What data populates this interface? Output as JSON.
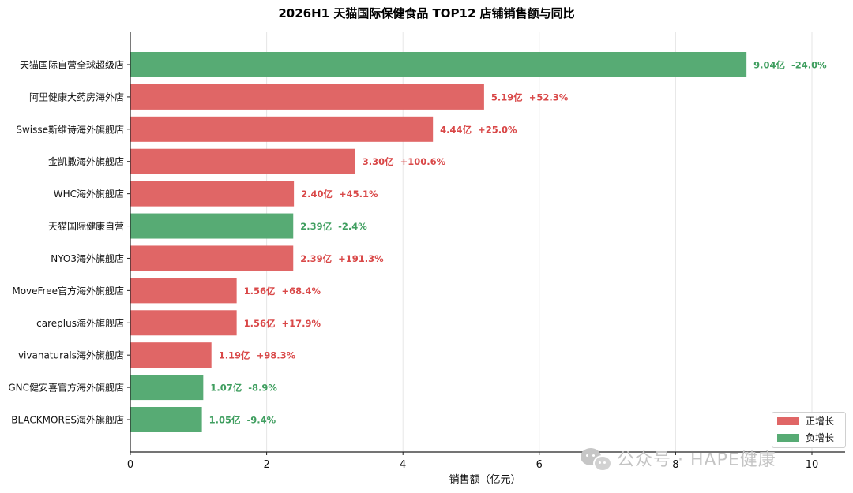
{
  "chart_data": {
    "type": "bar",
    "orientation": "horizontal",
    "title": "2026H1 天猫国际保健食品 TOP12 店铺销售额与同比",
    "xlabel": "销售额（亿元）",
    "ylabel": "",
    "xlim": [
      0,
      10.5
    ],
    "xticks": [
      0,
      2,
      4,
      6,
      8,
      10
    ],
    "grid": "x",
    "categories": [
      "天猫国际自营全球超级店",
      "阿里健康大药房海外店",
      "Swisse斯维诗海外旗舰店",
      "金凯撒海外旗舰店",
      "WHC海外旗舰店",
      "天猫国际健康自营",
      "NYO3海外旗舰店",
      "MoveFree官方海外旗舰店",
      "careplus海外旗舰店",
      "vivanaturals海外旗舰店",
      "GNC健安喜官方海外旗舰店",
      "BLACKMORES海外旗舰店"
    ],
    "values": [
      9.04,
      5.19,
      4.44,
      3.3,
      2.4,
      2.39,
      2.39,
      1.56,
      1.56,
      1.19,
      1.07,
      1.05
    ],
    "growth": [
      -24.0,
      52.3,
      25.0,
      100.6,
      45.1,
      -2.4,
      191.3,
      68.4,
      17.9,
      98.3,
      -8.9,
      -9.4
    ],
    "data_labels": [
      "9.04亿  -24.0%",
      "5.19亿  +52.3%",
      "4.44亿  +25.0%",
      "3.30亿  +100.6%",
      "2.40亿  +45.1%",
      "2.39亿  -2.4%",
      "2.39亿  +191.3%",
      "1.56亿  +68.4%",
      "1.56亿  +17.9%",
      "1.19亿  +98.3%",
      "1.07亿  -8.9%",
      "1.05亿  -9.4%"
    ],
    "legend": {
      "placement": "bottom-right",
      "entries": [
        {
          "label": "正增长",
          "color": "#e06666"
        },
        {
          "label": "负增长",
          "color": "#57ab74"
        }
      ]
    },
    "colors": {
      "positive": "#e06666",
      "negative": "#57ab74",
      "positive_text": "#d94848",
      "negative_text": "#3f9e5f"
    }
  },
  "watermark": {
    "text": "公众号 · HAPE健康",
    "icon": "wechat-icon"
  }
}
